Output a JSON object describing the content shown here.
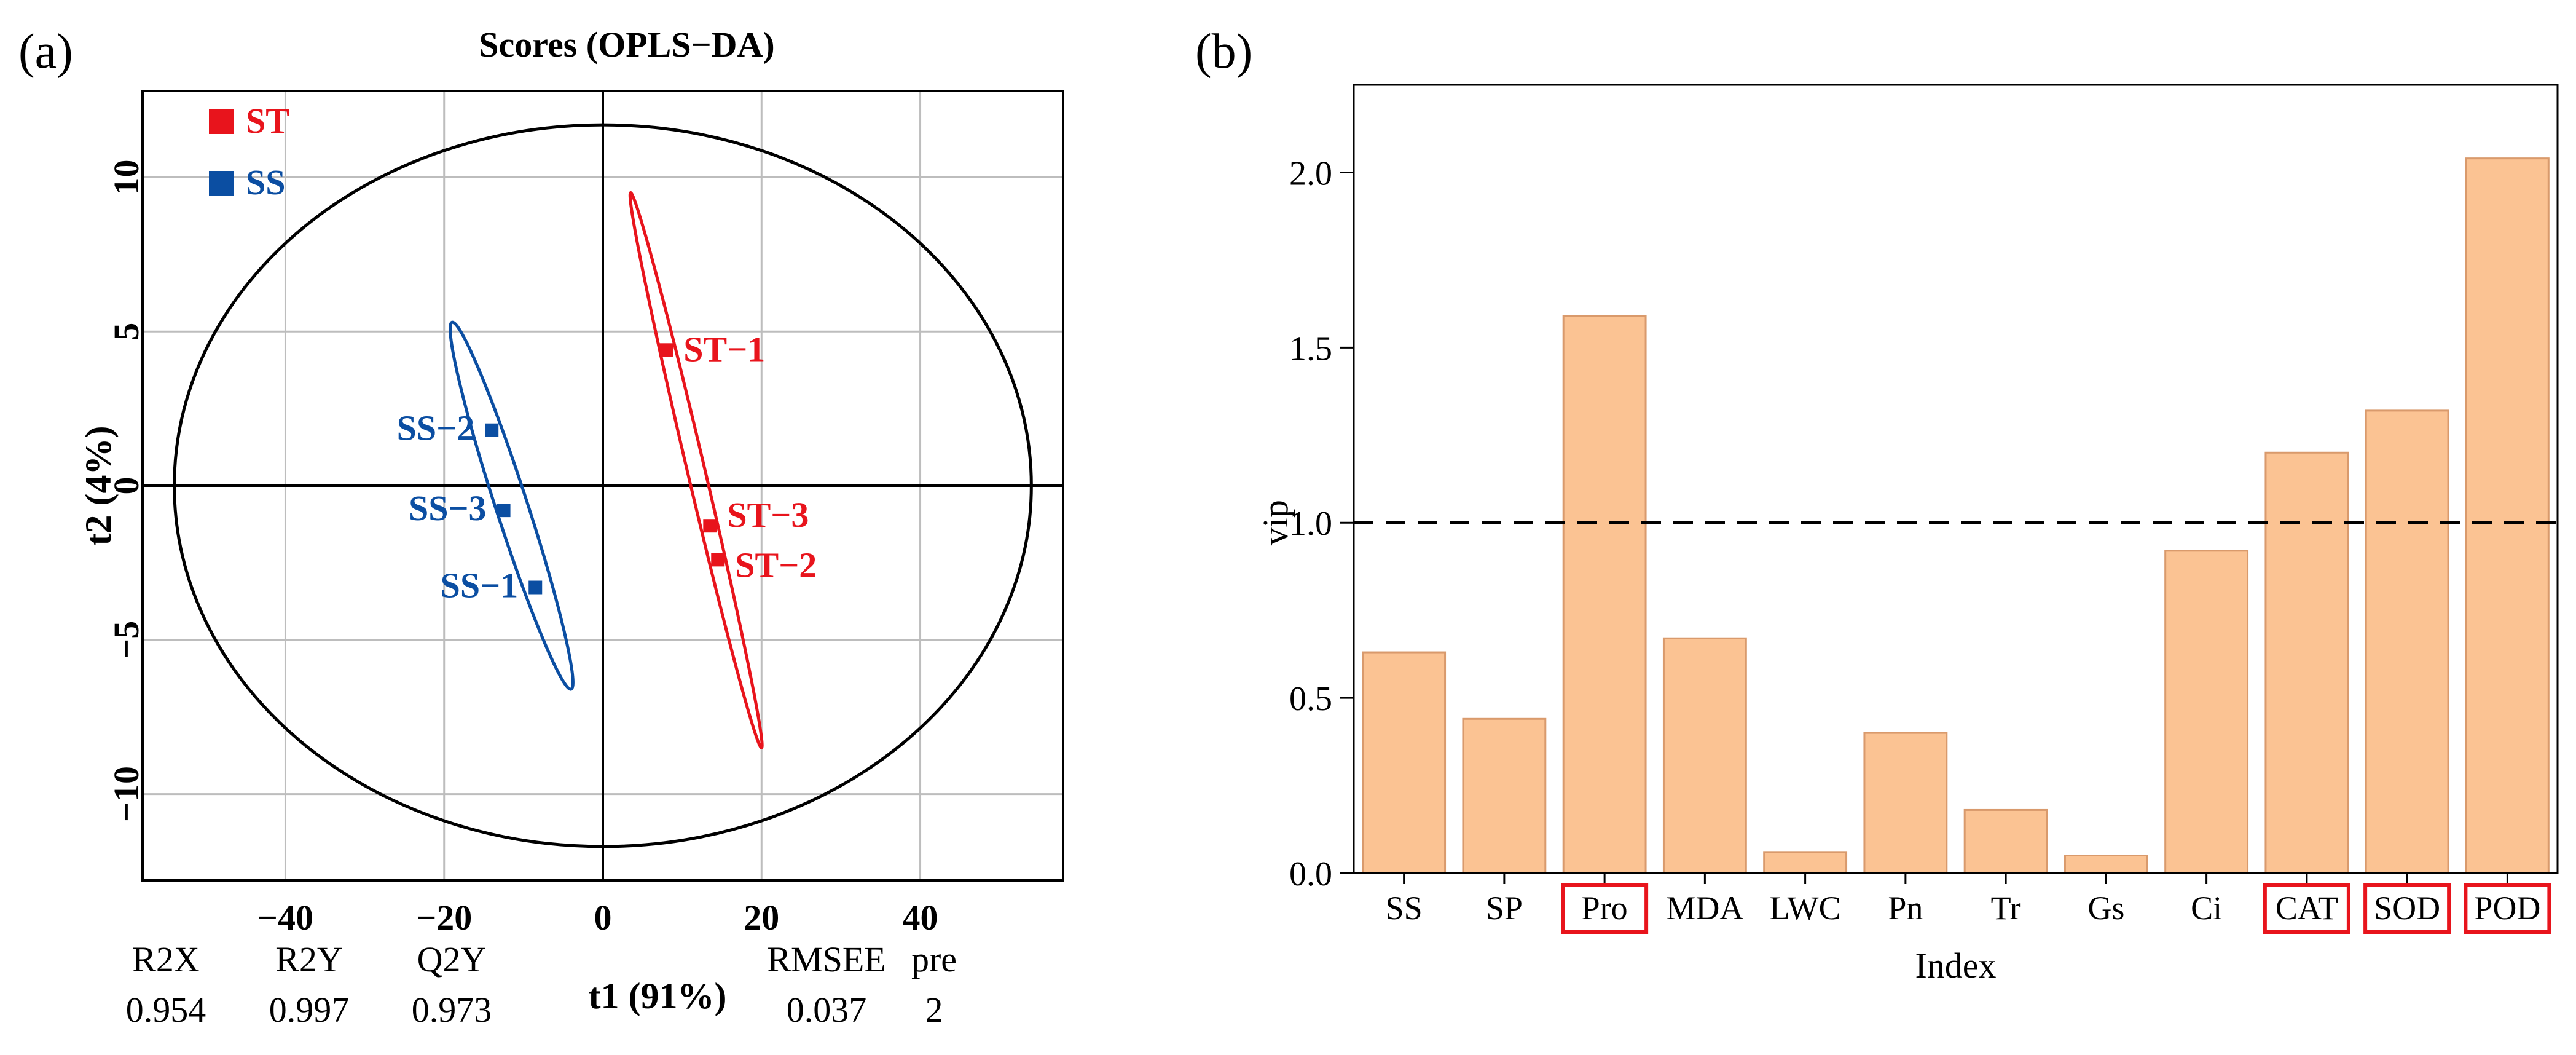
{
  "panel_a": {
    "label": "(a)",
    "chart_data": {
      "type": "scatter",
      "title": "Scores (OPLS−DA)",
      "xlabel": "t1 (91%)",
      "ylabel": "t2 (4%)",
      "xlim": [
        -58,
        58
      ],
      "ylim": [
        -12.8,
        12.8
      ],
      "xticks": [
        -40,
        -20,
        0,
        20,
        40
      ],
      "xtick_labels": [
        "−40",
        "−20",
        "0",
        "20",
        "40"
      ],
      "yticks": [
        -10,
        -5,
        0,
        5,
        10
      ],
      "ytick_labels": [
        "−10",
        "−5",
        "0",
        "5",
        "10"
      ],
      "grid": true,
      "legend_position": "top-left",
      "series": [
        {
          "name": "ST",
          "color": "#e8141c",
          "points": [
            {
              "label": "ST−1",
              "x": 8,
              "y": 4.4
            },
            {
              "label": "ST−3",
              "x": 13.5,
              "y": -1.3
            },
            {
              "label": "ST−2",
              "x": 14.5,
              "y": -2.4
            }
          ],
          "ellipse": {
            "p1": [
              3.5,
              9.5
            ],
            "p2": [
              20,
              -8.5
            ],
            "half_width": 1.1
          }
        },
        {
          "name": "SS",
          "color": "#0b4ea2",
          "points": [
            {
              "label": "SS−2",
              "x": -14,
              "y": 1.8
            },
            {
              "label": "SS−3",
              "x": -12.5,
              "y": -0.8
            },
            {
              "label": "SS−1",
              "x": -8.5,
              "y": -3.3
            }
          ],
          "ellipse": {
            "p1": [
              -19,
              5.3
            ],
            "p2": [
              -4,
              -6.6
            ],
            "half_width": 2.0
          }
        }
      ],
      "hotelling_t2_ellipse": {
        "rx": 54,
        "ry": 11.7
      },
      "stats": {
        "headers": [
          "R2X",
          "R2Y",
          "Q2Y",
          "RMSEE",
          "pre"
        ],
        "values": [
          "0.954",
          "0.997",
          "0.973",
          "0.037",
          "2"
        ]
      }
    }
  },
  "panel_b": {
    "label": "(b)",
    "chart_data": {
      "type": "bar",
      "title": "",
      "xlabel": "Index",
      "ylabel": "vip",
      "ylim": [
        0,
        2.25
      ],
      "yticks": [
        0.0,
        0.5,
        1.0,
        1.5,
        2.0
      ],
      "ytick_labels": [
        "0.0",
        "0.5",
        "1.0",
        "1.5",
        "2.0"
      ],
      "categories": [
        "SS",
        "SP",
        "Pro",
        "MDA",
        "LWC",
        "Pn",
        "Tr",
        "Gs",
        "Ci",
        "CAT",
        "SOD",
        "POD"
      ],
      "values": [
        0.63,
        0.44,
        1.59,
        0.67,
        0.06,
        0.4,
        0.18,
        0.05,
        0.92,
        1.2,
        1.32,
        2.04
      ],
      "highlighted": [
        "Pro",
        "CAT",
        "SOD",
        "POD"
      ],
      "threshold": 1.0,
      "bar_color": "#fbc393",
      "bar_edge_color": "#d99a6c",
      "highlight_color": "#e8141c"
    }
  }
}
